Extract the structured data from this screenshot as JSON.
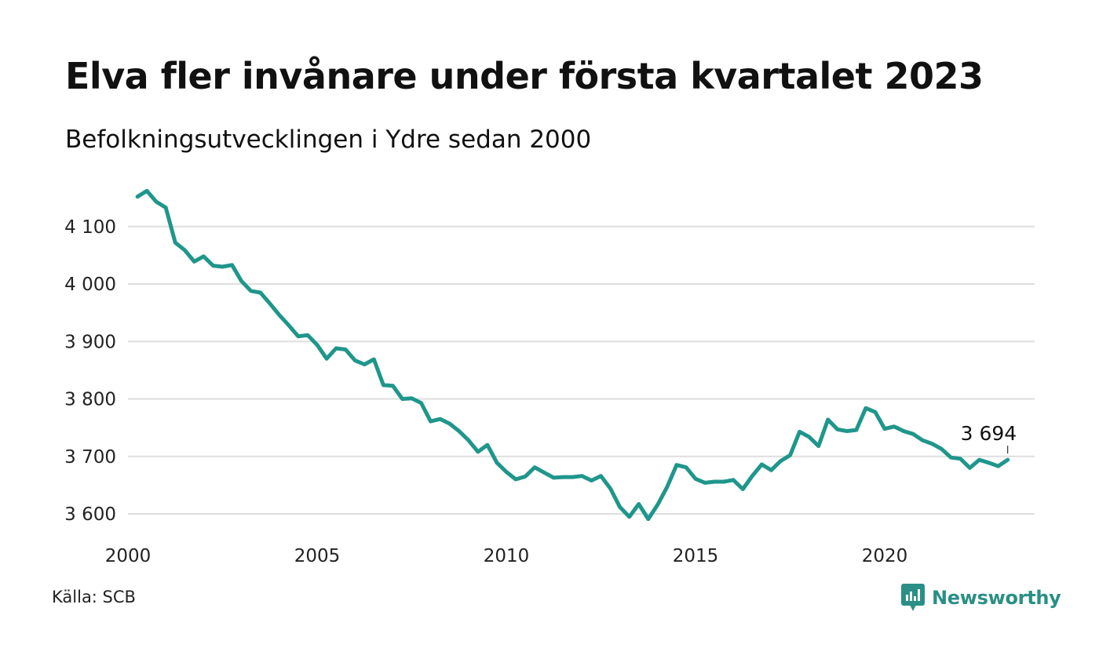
{
  "title": "Elva fler invånare under första kvartalet 2023",
  "subtitle": "Befolkningsutvecklingen i Ydre sedan 2000",
  "source": "Källa: SCB",
  "brand": {
    "name": "Newsworthy",
    "icon": "newsworthy-logo-icon",
    "color": "#2a8f86"
  },
  "chart_data": {
    "type": "line",
    "title": "Elva fler invånare under första kvartalet 2023",
    "subtitle": "Befolkningsutvecklingen i Ydre sedan 2000",
    "xlabel": "",
    "ylabel": "",
    "xlim": [
      2000,
      2023.75
    ],
    "ylim": [
      3560,
      4170
    ],
    "x_ticks": [
      2000,
      2005,
      2010,
      2015,
      2020
    ],
    "x_tick_labels": [
      "2000",
      "2005",
      "2010",
      "2015",
      "2020"
    ],
    "y_ticks": [
      3600,
      3700,
      3800,
      3900,
      4000,
      4100
    ],
    "y_tick_labels": [
      "3 600",
      "3 700",
      "3 800",
      "3 900",
      "4 000",
      "4 100"
    ],
    "grid": "horizontal",
    "line_color": "#1f968b",
    "annotation": {
      "x": 2023.25,
      "y": 3694,
      "label": "3 694"
    },
    "series": [
      {
        "x": [
          2000.25,
          2000.5,
          2000.75,
          2001.0,
          2001.25,
          2001.5,
          2001.75,
          2002.0,
          2002.25,
          2002.5,
          2002.75,
          2003.0,
          2003.25,
          2003.5,
          2003.75,
          2004.0,
          2004.25,
          2004.5,
          2004.75,
          2005.0,
          2005.25,
          2005.5,
          2005.75,
          2006.0,
          2006.25,
          2006.5,
          2006.75,
          2007.0,
          2007.25,
          2007.5,
          2007.75,
          2008.0,
          2008.25,
          2008.5,
          2008.75,
          2009.0,
          2009.25,
          2009.5,
          2009.75,
          2010.0,
          2010.25,
          2010.5,
          2010.75,
          2011.0,
          2011.25,
          2011.5,
          2011.75,
          2012.0,
          2012.25,
          2012.5,
          2012.75,
          2013.0,
          2013.25,
          2013.5,
          2013.75,
          2014.0,
          2014.25,
          2014.5,
          2014.75,
          2015.0,
          2015.25,
          2015.5,
          2015.75,
          2016.0,
          2016.25,
          2016.5,
          2016.75,
          2017.0,
          2017.25,
          2017.5,
          2017.75,
          2018.0,
          2018.25,
          2018.5,
          2018.75,
          2019.0,
          2019.25,
          2019.5,
          2019.75,
          2020.0,
          2020.25,
          2020.5,
          2020.75,
          2021.0,
          2021.25,
          2021.5,
          2021.75,
          2022.0,
          2022.25,
          2022.5,
          2022.75,
          2023.0,
          2023.25
        ],
        "values": [
          4152,
          4162,
          4143,
          4133,
          4072,
          4059,
          4039,
          4048,
          4032,
          4030,
          4033,
          4005,
          3988,
          3985,
          3966,
          3946,
          3928,
          3909,
          3911,
          3894,
          3870,
          3888,
          3886,
          3867,
          3860,
          3869,
          3824,
          3823,
          3800,
          3801,
          3793,
          3761,
          3765,
          3757,
          3744,
          3728,
          3708,
          3720,
          3689,
          3673,
          3660,
          3665,
          3681,
          3672,
          3663,
          3664,
          3664,
          3666,
          3658,
          3666,
          3644,
          3612,
          3595,
          3617,
          3591,
          3616,
          3647,
          3685,
          3681,
          3661,
          3654,
          3656,
          3656,
          3659,
          3643,
          3666,
          3686,
          3676,
          3692,
          3702,
          3743,
          3734,
          3718,
          3764,
          3747,
          3744,
          3746,
          3784,
          3777,
          3748,
          3752,
          3744,
          3739,
          3728,
          3722,
          3713,
          3698,
          3696,
          3680,
          3694,
          3689,
          3683,
          3694
        ]
      }
    ]
  }
}
